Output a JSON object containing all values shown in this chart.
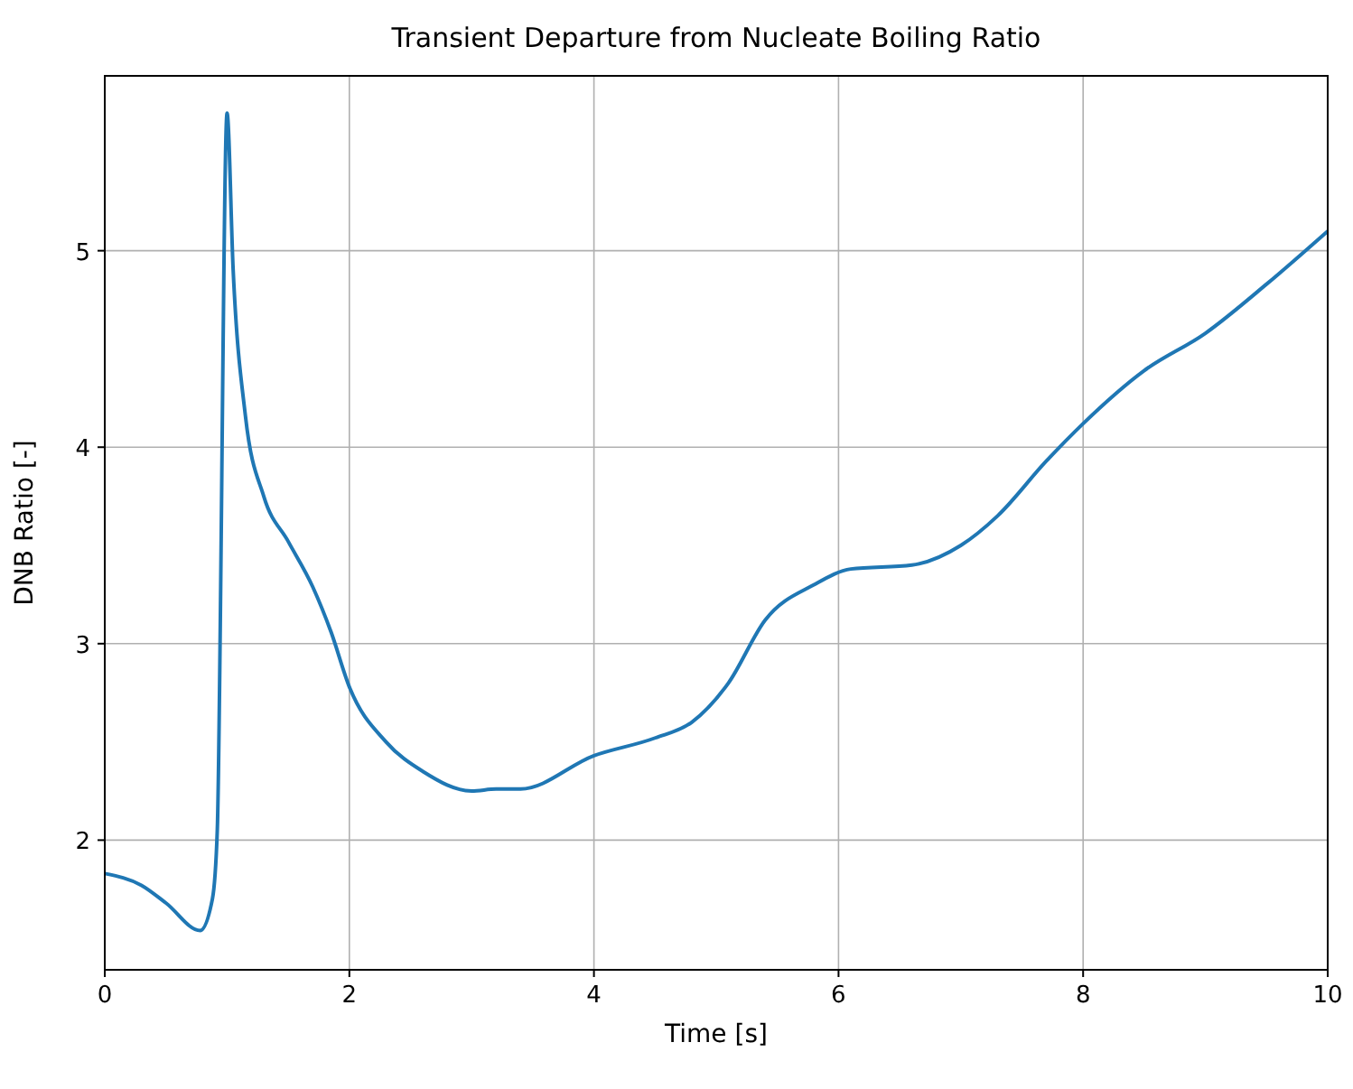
{
  "chart_data": {
    "type": "line",
    "title": "Transient Departure from Nucleate Boiling Ratio",
    "xlabel": "Time [s]",
    "ylabel": "DNB Ratio [-]",
    "x": [
      0,
      0.3,
      0.5,
      0.78,
      0.88,
      0.92,
      1.0,
      1.05,
      1.15,
      1.3,
      1.5,
      1.7,
      1.85,
      2.0,
      2.3,
      2.6,
      3.0,
      3.2,
      3.4,
      4.0,
      4.5,
      4.8,
      5.1,
      5.4,
      5.8,
      6.1,
      6.6,
      7.0,
      7.3,
      7.7,
      8.0,
      8.5,
      9.0,
      9.5,
      10
    ],
    "series": [
      {
        "color": "#1f77b4",
        "values": [
          1.83,
          1.77,
          1.68,
          1.54,
          1.7,
          2.05,
          5.7,
          4.9,
          4.16,
          3.75,
          3.52,
          3.29,
          3.06,
          2.78,
          2.5,
          2.35,
          2.25,
          2.26,
          2.26,
          2.43,
          2.52,
          2.6,
          2.8,
          3.12,
          3.3,
          3.38,
          3.4,
          3.5,
          3.65,
          3.93,
          4.12,
          4.39,
          4.58,
          4.83,
          5.1
        ]
      }
    ],
    "xlim": [
      0,
      10
    ],
    "xticks": [
      0,
      2,
      4,
      6,
      8,
      10
    ],
    "ylim": [
      1.34,
      5.89
    ],
    "yticks": [
      2,
      3,
      4,
      5
    ],
    "grid": true,
    "marker": "none",
    "line_style": "solid"
  }
}
